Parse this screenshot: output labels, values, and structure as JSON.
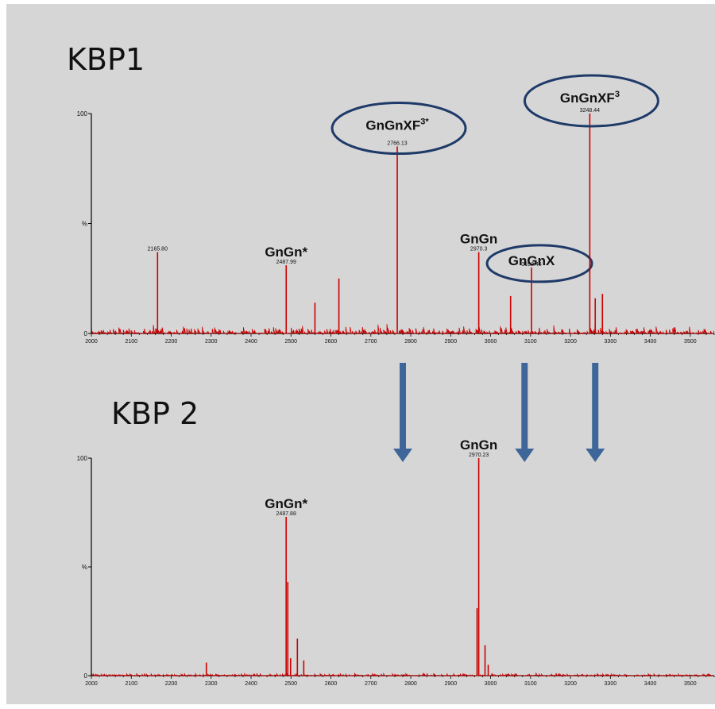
{
  "chart_data": [
    {
      "type": "bar",
      "title": "KBP1",
      "xlim": [
        2000,
        3560
      ],
      "ylim": [
        0,
        100
      ],
      "x_ticks": [
        "2000",
        "2100",
        "2200",
        "2300",
        "2400",
        "2500",
        "2600",
        "2700",
        "2800",
        "2900",
        "3000",
        "3100",
        "3200",
        "3300",
        "3400",
        "3500"
      ],
      "y_ticks": [
        "0",
        "%",
        "100"
      ],
      "peaks": [
        {
          "x": 2165.8,
          "y": 37,
          "mass_label": "2165.80",
          "glycan": ""
        },
        {
          "x": 2487.99,
          "y": 31,
          "mass_label": "2487.99",
          "glycan": "GnGn*"
        },
        {
          "x": 2560,
          "y": 14,
          "mass_label": "",
          "glycan": ""
        },
        {
          "x": 2620,
          "y": 25,
          "mass_label": "",
          "glycan": ""
        },
        {
          "x": 2766.13,
          "y": 85,
          "mass_label": "2766.13",
          "glycan": "GnGnXF³*"
        },
        {
          "x": 2970.3,
          "y": 37,
          "mass_label": "2970.3",
          "glycan": "GnGn"
        },
        {
          "x": 3050,
          "y": 17,
          "mass_label": "",
          "glycan": ""
        },
        {
          "x": 3102.46,
          "y": 30,
          "mass_label": "3102.46",
          "glycan": "GnGnX"
        },
        {
          "x": 3248.44,
          "y": 100,
          "mass_label": "3248.44",
          "glycan": "GnGnXF³"
        },
        {
          "x": 3262,
          "y": 16,
          "mass_label": "",
          "glycan": ""
        },
        {
          "x": 3280,
          "y": 18,
          "mass_label": "",
          "glycan": ""
        }
      ],
      "circled": [
        "GnGnXF³*",
        "GnGnX",
        "GnGnXF³"
      ]
    },
    {
      "type": "bar",
      "title": "KBP 2",
      "xlim": [
        2000,
        3560
      ],
      "ylim": [
        0,
        100
      ],
      "x_ticks": [
        "2000",
        "2100",
        "2200",
        "2300",
        "2400",
        "2500",
        "2600",
        "2700",
        "2800",
        "2900",
        "3000",
        "3100",
        "3200",
        "3300",
        "3400",
        "3500"
      ],
      "y_ticks": [
        "0",
        "%",
        "100"
      ],
      "peaks": [
        {
          "x": 2288,
          "y": 6,
          "mass_label": "",
          "glycan": ""
        },
        {
          "x": 2487.88,
          "y": 73,
          "mass_label": "2487.88",
          "glycan": "GnGn*"
        },
        {
          "x": 2492,
          "y": 43,
          "mass_label": "",
          "glycan": ""
        },
        {
          "x": 2499,
          "y": 8,
          "mass_label": "",
          "glycan": ""
        },
        {
          "x": 2516,
          "y": 17,
          "mass_label": "",
          "glycan": ""
        },
        {
          "x": 2532,
          "y": 7,
          "mass_label": "",
          "glycan": ""
        },
        {
          "x": 2970.23,
          "y": 100,
          "mass_label": "2970.23",
          "glycan": "GnGn"
        },
        {
          "x": 2966,
          "y": 31,
          "mass_label": "",
          "glycan": ""
        },
        {
          "x": 2986,
          "y": 14,
          "mass_label": "",
          "glycan": ""
        },
        {
          "x": 2994,
          "y": 5,
          "mass_label": "",
          "glycan": ""
        }
      ],
      "circled": []
    }
  ],
  "arrow_x_values": [
    2780,
    3085,
    3262
  ],
  "colors": {
    "trace": "#cc0000",
    "circle": "#1f3a68",
    "arrow": "#3e6698",
    "background": "#d6d6d6"
  }
}
